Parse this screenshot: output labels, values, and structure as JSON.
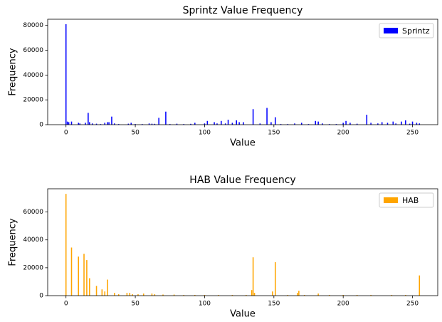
{
  "chart_data": [
    {
      "type": "bar",
      "title": "Sprintz Value Frequency",
      "xlabel": "Value",
      "ylabel": "Frequency",
      "series": [
        {
          "name": "Sprintz",
          "color": "#0000ff",
          "x": [
            0,
            1,
            2,
            4,
            9,
            10,
            14,
            16,
            17,
            19,
            22,
            25,
            28,
            30,
            31,
            33,
            35,
            38,
            45,
            47,
            50,
            55,
            60,
            62,
            64,
            67,
            72,
            75,
            80,
            85,
            90,
            93,
            100,
            102,
            107,
            109,
            112,
            115,
            117,
            120,
            123,
            125,
            128,
            135,
            140,
            145,
            148,
            151,
            155,
            160,
            165,
            170,
            175,
            180,
            182,
            185,
            190,
            195,
            200,
            202,
            205,
            210,
            217,
            220,
            225,
            228,
            232,
            236,
            238,
            242,
            245,
            248,
            250,
            253,
            255
          ],
          "values": [
            81000,
            2500,
            2000,
            2500,
            1500,
            1000,
            1500,
            9500,
            2000,
            1000,
            800,
            500,
            1500,
            2000,
            2000,
            6500,
            1000,
            500,
            800,
            1500,
            500,
            500,
            1000,
            800,
            700,
            5500,
            10500,
            500,
            800,
            500,
            700,
            1500,
            1000,
            3000,
            2000,
            1000,
            3000,
            1000,
            4000,
            1500,
            3500,
            2000,
            2000,
            12500,
            1000,
            13500,
            2000,
            6000,
            500,
            500,
            1000,
            1500,
            500,
            3000,
            2500,
            1000,
            500,
            500,
            1500,
            3000,
            1500,
            800,
            8000,
            1500,
            1000,
            2000,
            1500,
            2500,
            1000,
            2500,
            3500,
            800,
            2500,
            1500,
            1000
          ]
        }
      ],
      "xlim": [
        -13.2,
        268.2
      ],
      "xticks": [
        0,
        50,
        100,
        150,
        200,
        250
      ],
      "ylim": [
        0,
        85000
      ],
      "yticks": [
        0,
        20000,
        40000,
        60000,
        80000
      ],
      "legend": "upper right"
    },
    {
      "type": "bar",
      "title": "HAB Value Frequency",
      "xlabel": "Value",
      "ylabel": "Frequency",
      "series": [
        {
          "name": "HAB",
          "color": "#ffa500",
          "x": [
            0,
            4,
            9,
            13,
            15,
            17,
            22,
            26,
            28,
            30,
            35,
            38,
            44,
            46,
            48,
            52,
            56,
            62,
            64,
            70,
            78,
            85,
            93,
            100,
            110,
            120,
            130,
            134,
            135,
            136,
            149,
            151,
            160,
            167,
            168,
            172,
            182,
            190,
            200,
            210,
            220,
            235,
            245,
            255
          ],
          "values": [
            73000,
            34500,
            28000,
            30000,
            25500,
            12500,
            7000,
            4500,
            3000,
            11500,
            2000,
            1000,
            2000,
            2000,
            1000,
            1000,
            1500,
            1500,
            1000,
            800,
            800,
            500,
            500,
            500,
            500,
            500,
            500,
            4000,
            27500,
            2000,
            3000,
            24000,
            500,
            2000,
            3500,
            500,
            1500,
            500,
            500,
            500,
            500,
            500,
            500,
            14500
          ]
        }
      ],
      "xlim": [
        -13.2,
        268.2
      ],
      "xticks": [
        0,
        50,
        100,
        150,
        200,
        250
      ],
      "ylim": [
        0,
        76650
      ],
      "yticks": [
        0,
        20000,
        40000,
        60000
      ],
      "legend": "upper right"
    }
  ]
}
